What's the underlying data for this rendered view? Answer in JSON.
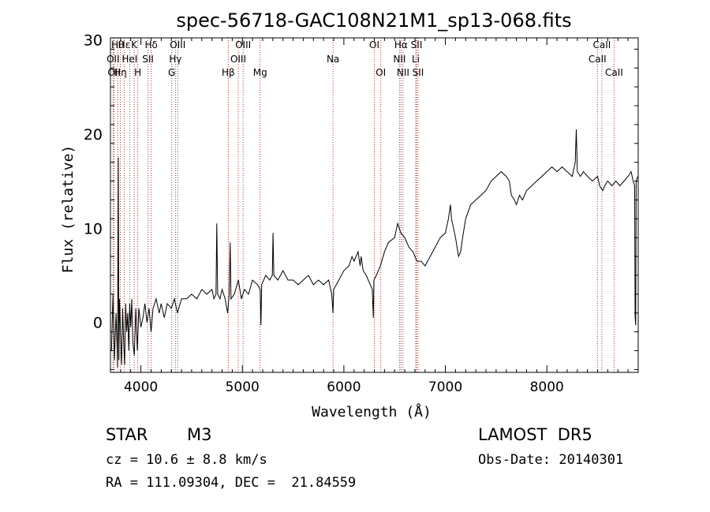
{
  "chart_data": {
    "type": "line",
    "title": "spec-56718-GAC108N21M1_sp13-068.fits",
    "xlabel": "Wavelength (Å)",
    "ylabel": "Flux (relative)",
    "xlim": [
      3700,
      8900
    ],
    "ylim": [
      -5.3,
      30.2
    ],
    "xticks": [
      4000,
      5000,
      6000,
      7000,
      8000
    ],
    "yticks": [
      0,
      10,
      20,
      30
    ],
    "grid": false,
    "line_color": "#000000",
    "series": [
      {
        "values": [
          [
            3710,
            -3.0
          ],
          [
            3725,
            3.0
          ],
          [
            3740,
            -4.0
          ],
          [
            3755,
            1.0
          ],
          [
            3765,
            -2.5
          ],
          [
            3770,
            -4.8
          ],
          [
            3778,
            17.5
          ],
          [
            3783,
            -4.0
          ],
          [
            3790,
            2.5
          ],
          [
            3800,
            -1.5
          ],
          [
            3810,
            -4.5
          ],
          [
            3820,
            1.5
          ],
          [
            3830,
            -2.0
          ],
          [
            3840,
            -4.5
          ],
          [
            3850,
            2.0
          ],
          [
            3860,
            -1.0
          ],
          [
            3870,
            1.0
          ],
          [
            3880,
            -3.0
          ],
          [
            3890,
            2.0
          ],
          [
            3900,
            -0.5
          ],
          [
            3910,
            2.5
          ],
          [
            3920,
            -2.0
          ],
          [
            3935,
            -3.5
          ],
          [
            3950,
            1.5
          ],
          [
            3965,
            -3.0
          ],
          [
            3980,
            1.5
          ],
          [
            4000,
            -0.5
          ],
          [
            4020,
            0.5
          ],
          [
            4040,
            2.0
          ],
          [
            4060,
            0.0
          ],
          [
            4080,
            1.5
          ],
          [
            4100,
            -1.0
          ],
          [
            4120,
            1.5
          ],
          [
            4150,
            2.5
          ],
          [
            4180,
            1.0
          ],
          [
            4200,
            2.0
          ],
          [
            4230,
            0.5
          ],
          [
            4260,
            2.0
          ],
          [
            4300,
            1.5
          ],
          [
            4330,
            2.5
          ],
          [
            4360,
            1.0
          ],
          [
            4400,
            2.5
          ],
          [
            4450,
            2.5
          ],
          [
            4500,
            3.0
          ],
          [
            4550,
            2.5
          ],
          [
            4600,
            3.5
          ],
          [
            4650,
            3.0
          ],
          [
            4700,
            3.5
          ],
          [
            4720,
            2.5
          ],
          [
            4740,
            3.0
          ],
          [
            4748,
            10.5
          ],
          [
            4756,
            3.0
          ],
          [
            4780,
            2.5
          ],
          [
            4800,
            3.5
          ],
          [
            4830,
            2.5
          ],
          [
            4855,
            1.0
          ],
          [
            4870,
            3.0
          ],
          [
            4880,
            8.5
          ],
          [
            4888,
            2.5
          ],
          [
            4920,
            3.0
          ],
          [
            4960,
            4.5
          ],
          [
            4990,
            2.5
          ],
          [
            5020,
            3.5
          ],
          [
            5060,
            3.0
          ],
          [
            5100,
            4.5
          ],
          [
            5150,
            4.0
          ],
          [
            5175,
            3.5
          ],
          [
            5183,
            -0.3
          ],
          [
            5190,
            4.0
          ],
          [
            5230,
            5.0
          ],
          [
            5270,
            4.5
          ],
          [
            5295,
            5.0
          ],
          [
            5302,
            9.5
          ],
          [
            5310,
            5.0
          ],
          [
            5350,
            4.5
          ],
          [
            5400,
            5.5
          ],
          [
            5450,
            4.5
          ],
          [
            5500,
            4.5
          ],
          [
            5550,
            4.0
          ],
          [
            5600,
            4.5
          ],
          [
            5650,
            5.0
          ],
          [
            5700,
            4.0
          ],
          [
            5750,
            4.5
          ],
          [
            5800,
            4.0
          ],
          [
            5850,
            4.5
          ],
          [
            5880,
            3.0
          ],
          [
            5893,
            1.0
          ],
          [
            5900,
            3.5
          ],
          [
            5950,
            4.5
          ],
          [
            6000,
            5.5
          ],
          [
            6050,
            6.0
          ],
          [
            6080,
            7.0
          ],
          [
            6100,
            6.5
          ],
          [
            6140,
            7.5
          ],
          [
            6160,
            6.0
          ],
          [
            6170,
            7.0
          ],
          [
            6190,
            5.5
          ],
          [
            6220,
            5.0
          ],
          [
            6260,
            4.0
          ],
          [
            6280,
            3.5
          ],
          [
            6290,
            0.5
          ],
          [
            6296,
            4.5
          ],
          [
            6320,
            5.0
          ],
          [
            6360,
            6.0
          ],
          [
            6400,
            7.5
          ],
          [
            6440,
            8.5
          ],
          [
            6500,
            9.0
          ],
          [
            6530,
            10.5
          ],
          [
            6560,
            9.5
          ],
          [
            6600,
            9.0
          ],
          [
            6640,
            8.0
          ],
          [
            6680,
            7.5
          ],
          [
            6720,
            6.5
          ],
          [
            6760,
            6.5
          ],
          [
            6800,
            6.0
          ],
          [
            6850,
            7.0
          ],
          [
            6900,
            8.0
          ],
          [
            6950,
            9.0
          ],
          [
            7000,
            9.5
          ],
          [
            7030,
            11.0
          ],
          [
            7050,
            12.5
          ],
          [
            7060,
            11.0
          ],
          [
            7080,
            10.0
          ],
          [
            7100,
            9.0
          ],
          [
            7130,
            7.0
          ],
          [
            7150,
            7.5
          ],
          [
            7170,
            9.0
          ],
          [
            7200,
            11.0
          ],
          [
            7250,
            12.5
          ],
          [
            7300,
            13.0
          ],
          [
            7350,
            13.5
          ],
          [
            7400,
            14.0
          ],
          [
            7450,
            15.0
          ],
          [
            7500,
            15.5
          ],
          [
            7550,
            16.0
          ],
          [
            7600,
            15.5
          ],
          [
            7630,
            15.0
          ],
          [
            7650,
            13.5
          ],
          [
            7680,
            13.0
          ],
          [
            7700,
            12.5
          ],
          [
            7730,
            13.5
          ],
          [
            7760,
            13.0
          ],
          [
            7800,
            14.0
          ],
          [
            7850,
            14.5
          ],
          [
            7900,
            15.0
          ],
          [
            7950,
            15.5
          ],
          [
            8000,
            16.0
          ],
          [
            8050,
            16.5
          ],
          [
            8100,
            16.0
          ],
          [
            8150,
            16.5
          ],
          [
            8200,
            16.0
          ],
          [
            8250,
            15.5
          ],
          [
            8280,
            17.0
          ],
          [
            8290,
            20.5
          ],
          [
            8300,
            16.0
          ],
          [
            8330,
            15.5
          ],
          [
            8360,
            16.0
          ],
          [
            8400,
            15.5
          ],
          [
            8450,
            15.0
          ],
          [
            8500,
            15.5
          ],
          [
            8520,
            14.5
          ],
          [
            8550,
            14.0
          ],
          [
            8570,
            14.5
          ],
          [
            8600,
            15.0
          ],
          [
            8640,
            14.5
          ],
          [
            8680,
            15.0
          ],
          [
            8720,
            14.5
          ],
          [
            8760,
            15.0
          ],
          [
            8800,
            15.5
          ],
          [
            8830,
            16.0
          ],
          [
            8850,
            15.0
          ],
          [
            8865,
            14.5
          ],
          [
            8870,
            0.5
          ],
          [
            8875,
            -0.3
          ],
          [
            8880,
            15.0
          ],
          [
            8895,
            15.5
          ]
        ]
      }
    ],
    "lines": [
      {
        "x": 3726,
        "label": "OII",
        "row": 2
      },
      {
        "x": 3736,
        "label": "OII",
        "row": 3
      },
      {
        "x": 3771,
        "label": "Hθ",
        "row": 1
      },
      {
        "x": 3798,
        "label": "Hη",
        "row": 3
      },
      {
        "x": 3835,
        "label": "Hε",
        "row": 1
      },
      {
        "x": 3889,
        "label": "HeI",
        "row": 2
      },
      {
        "x": 3934,
        "label": "K",
        "row": 1
      },
      {
        "x": 3969,
        "label": "H",
        "row": 3
      },
      {
        "x": 4070,
        "label": "SII",
        "row": 2
      },
      {
        "x": 4102,
        "label": "Hδ",
        "row": 1
      },
      {
        "x": 4304,
        "label": "G",
        "row": 3
      },
      {
        "x": 4340,
        "label": "Hγ",
        "row": 2
      },
      {
        "x": 4363,
        "label": "OIII",
        "row": 1
      },
      {
        "x": 4861,
        "label": "Hβ",
        "row": 3
      },
      {
        "x": 4959,
        "label": "OIII",
        "row": 2
      },
      {
        "x": 5007,
        "label": "OIII",
        "row": 1
      },
      {
        "x": 5175,
        "label": "Mg",
        "row": 3
      },
      {
        "x": 5893,
        "label": "Na",
        "row": 2
      },
      {
        "x": 6300,
        "label": "OI",
        "row": 1
      },
      {
        "x": 6364,
        "label": "OI",
        "row": 3
      },
      {
        "x": 6548,
        "label": "NII",
        "row": 2
      },
      {
        "x": 6563,
        "label": "Hα",
        "row": 1
      },
      {
        "x": 6583,
        "label": "NII",
        "row": 3
      },
      {
        "x": 6708,
        "label": "Li",
        "row": 2
      },
      {
        "x": 6716,
        "label": "SII",
        "row": 1
      },
      {
        "x": 6731,
        "label": "SII",
        "row": 3
      },
      {
        "x": 8498,
        "label": "CaII",
        "row": 2
      },
      {
        "x": 8542,
        "label": "CaII",
        "row": 1
      },
      {
        "x": 8662,
        "label": "CaII",
        "row": 3
      }
    ]
  },
  "info": {
    "object_class": "STAR",
    "subclass": "M3",
    "survey": "LAMOST  DR5",
    "cz": "cz = 10.6 ± 8.8 km/s",
    "obs_date": "Obs-Date: 20140301",
    "coords": "RA = 111.09304, DEC =  21.84559"
  }
}
